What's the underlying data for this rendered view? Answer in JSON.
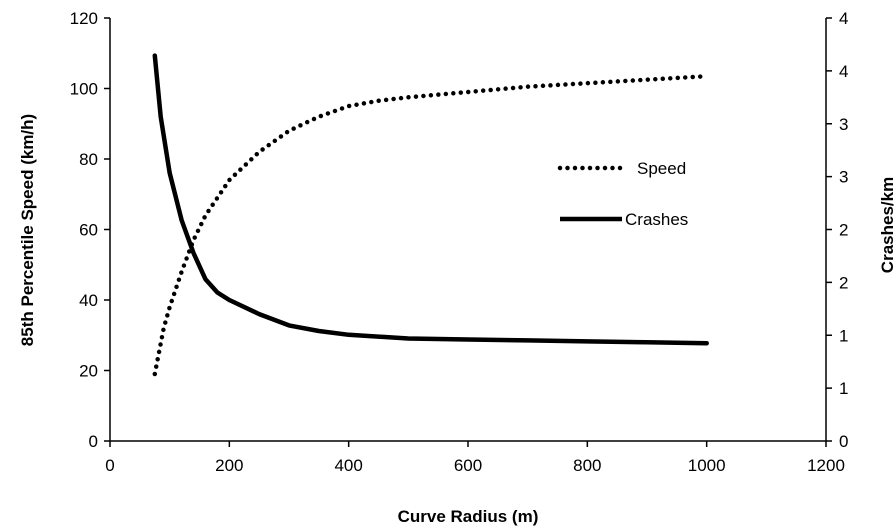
{
  "chart_data": {
    "type": "line",
    "xlabel": "Curve Radius (m)",
    "ylabel": "85th Percentile Speed (km/h)",
    "y2label": "Crashes/km",
    "xlim": [
      0,
      1200
    ],
    "ylim": [
      0,
      120
    ],
    "y2lim": [
      0,
      4.5
    ],
    "x_ticks": [
      "0",
      "200",
      "400",
      "600",
      "800",
      "1000",
      "1200"
    ],
    "y_ticks": [
      "0",
      "20",
      "40",
      "60",
      "80",
      "100",
      "120"
    ],
    "y2_ticks": [
      "0",
      "1",
      "1",
      "2",
      "2",
      "3",
      "3",
      "4",
      "4"
    ],
    "grid": false,
    "legend_position": "right",
    "series": [
      {
        "name": "Speed",
        "axis": "left",
        "style": "dotted",
        "color": "#000000",
        "x": [
          75,
          90,
          100,
          120,
          140,
          160,
          180,
          200,
          250,
          300,
          350,
          400,
          450,
          500,
          600,
          700,
          800,
          900,
          1000
        ],
        "y": [
          19,
          32,
          38,
          48,
          57,
          64,
          69,
          74,
          82,
          88,
          92,
          95,
          96.5,
          97.5,
          99,
          100.5,
          101.5,
          102.5,
          103.5
        ]
      },
      {
        "name": "Crashes",
        "axis": "right",
        "style": "solid",
        "color": "#000000",
        "x": [
          75,
          85,
          100,
          120,
          140,
          160,
          180,
          200,
          250,
          300,
          350,
          400,
          500,
          600,
          700,
          800,
          900,
          1000
        ],
        "y": [
          4.1,
          3.45,
          2.85,
          2.35,
          2.0,
          1.72,
          1.58,
          1.5,
          1.35,
          1.23,
          1.17,
          1.13,
          1.09,
          1.08,
          1.07,
          1.06,
          1.05,
          1.04
        ]
      }
    ]
  }
}
